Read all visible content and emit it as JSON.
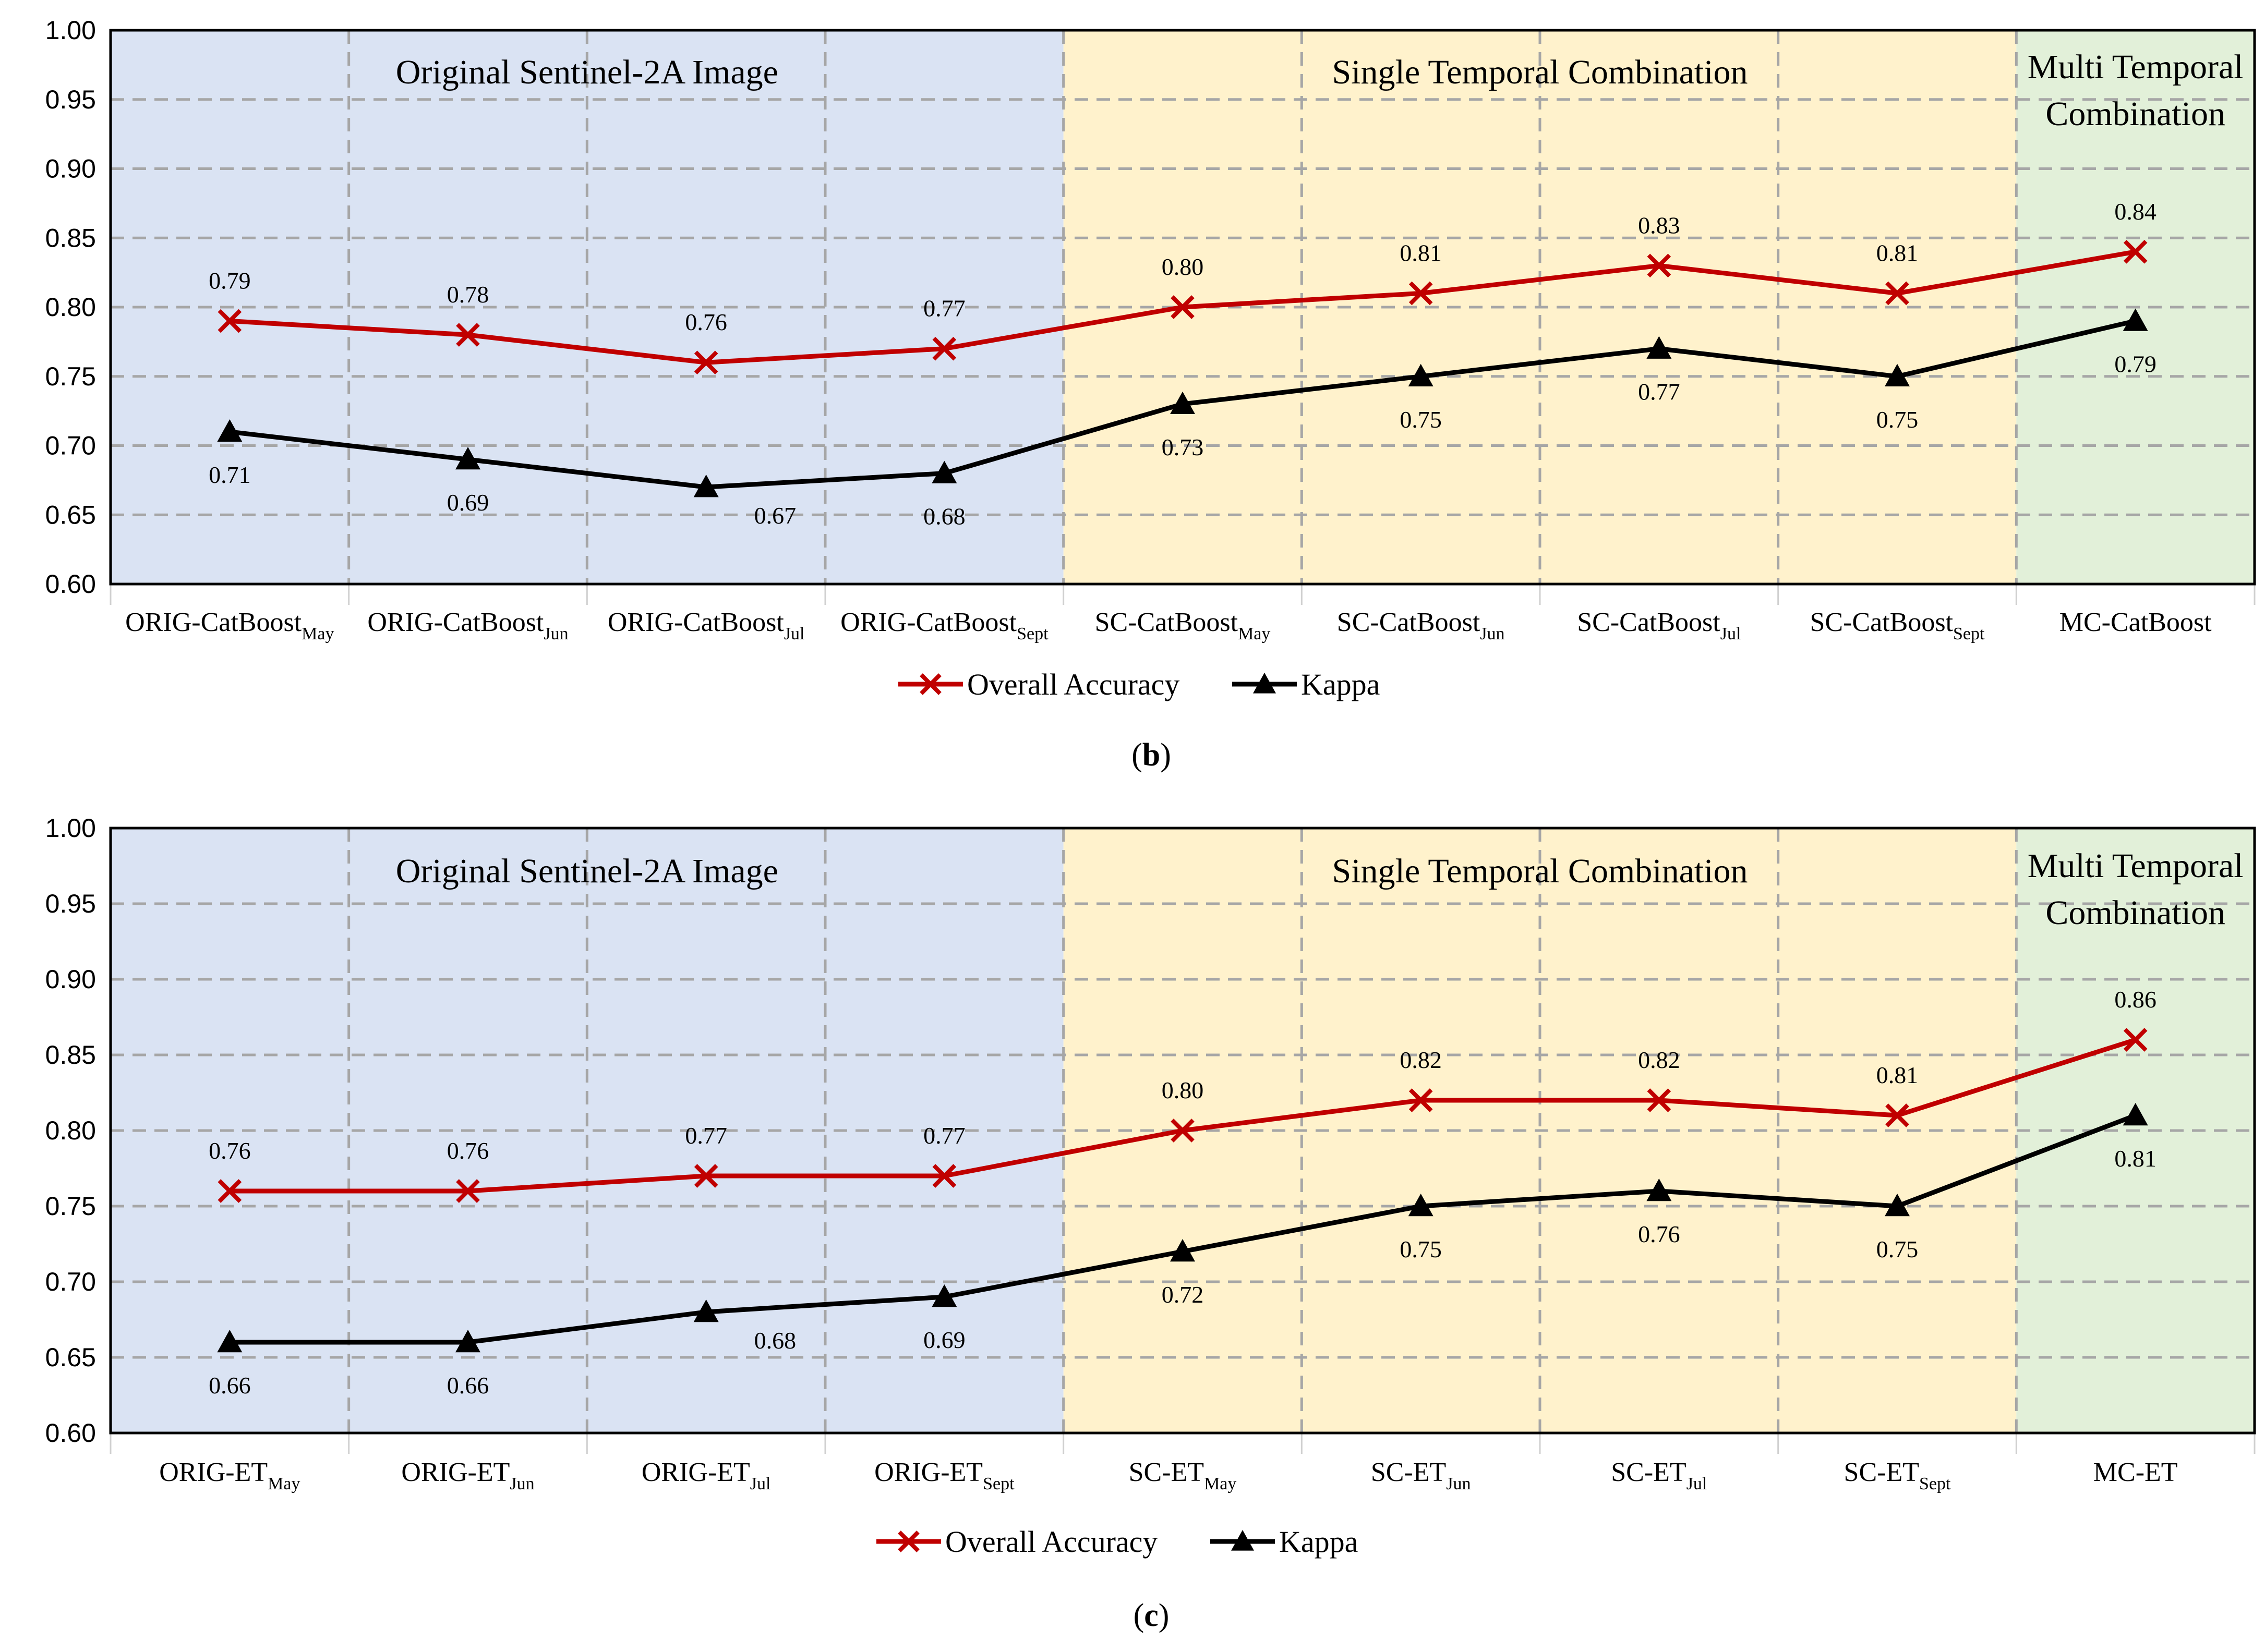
{
  "colors": {
    "oa": "#c00000",
    "kappa": "#000000",
    "band_original": "#dae3f3",
    "band_single": "#fff2cc",
    "band_multi": "#e2f0d9",
    "grid": "#a6a6a6"
  },
  "chart_data": [
    {
      "type": "line",
      "panel_caption": "b",
      "ylim": [
        0.6,
        1.0
      ],
      "yticks": [
        "0.60",
        "0.65",
        "0.70",
        "0.75",
        "0.80",
        "0.85",
        "0.90",
        "0.95",
        "1.00"
      ],
      "categories": [
        {
          "main": "ORIG-CatBoost",
          "sub": "May"
        },
        {
          "main": "ORIG-CatBoost",
          "sub": "Jun"
        },
        {
          "main": "ORIG-CatBoost",
          "sub": "Jul"
        },
        {
          "main": "ORIG-CatBoost",
          "sub": "Sept"
        },
        {
          "main": "SC-CatBoost",
          "sub": "May"
        },
        {
          "main": "SC-CatBoost",
          "sub": "Jun"
        },
        {
          "main": "SC-CatBoost",
          "sub": "Jul"
        },
        {
          "main": "SC-CatBoost",
          "sub": "Sept"
        },
        {
          "main": "MC-CatBoost",
          "sub": ""
        }
      ],
      "bands": [
        {
          "label_lines": [
            "Original Sentinel-2A Image"
          ],
          "start": 0,
          "end": 4,
          "color_key": "band_original"
        },
        {
          "label_lines": [
            "Single Temporal Combination"
          ],
          "start": 4,
          "end": 8,
          "color_key": "band_single"
        },
        {
          "label_lines": [
            "Multi Temporal",
            "Combination"
          ],
          "start": 8,
          "end": 9,
          "color_key": "band_multi"
        }
      ],
      "series": [
        {
          "name": "Overall Accuracy",
          "marker": "x",
          "color_key": "oa",
          "values": [
            0.79,
            0.78,
            0.76,
            0.77,
            0.8,
            0.81,
            0.83,
            0.81,
            0.84
          ],
          "labels": [
            "0.79",
            "0.78",
            "0.76",
            "0.77",
            "0.80",
            "0.81",
            "0.83",
            "0.81",
            "0.84"
          ],
          "label_pos": [
            "above",
            "above",
            "above",
            "above",
            "above",
            "above",
            "above",
            "above",
            "above"
          ]
        },
        {
          "name": "Kappa",
          "marker": "triangle",
          "color_key": "kappa",
          "values": [
            0.71,
            0.69,
            0.67,
            0.68,
            0.73,
            0.75,
            0.77,
            0.75,
            0.79
          ],
          "labels": [
            "0.71",
            "0.69",
            "0.67",
            "0.68",
            "0.73",
            "0.75",
            "0.77",
            "0.75",
            "0.79"
          ],
          "label_pos": [
            "below",
            "below",
            "right",
            "below",
            "below",
            "below",
            "below",
            "below",
            "below"
          ]
        }
      ]
    },
    {
      "type": "line",
      "panel_caption": "c",
      "ylim": [
        0.6,
        1.0
      ],
      "yticks": [
        "0.60",
        "0.65",
        "0.70",
        "0.75",
        "0.80",
        "0.85",
        "0.90",
        "0.95",
        "1.00"
      ],
      "categories": [
        {
          "main": "ORIG-ET",
          "sub": "May"
        },
        {
          "main": "ORIG-ET",
          "sub": "Jun"
        },
        {
          "main": "ORIG-ET",
          "sub": "Jul"
        },
        {
          "main": "ORIG-ET",
          "sub": "Sept"
        },
        {
          "main": "SC-ET",
          "sub": "May"
        },
        {
          "main": "SC-ET",
          "sub": "Jun"
        },
        {
          "main": "SC-ET",
          "sub": "Jul"
        },
        {
          "main": "SC-ET",
          "sub": "Sept"
        },
        {
          "main": "MC-ET",
          "sub": ""
        }
      ],
      "bands": [
        {
          "label_lines": [
            "Original Sentinel-2A Image"
          ],
          "start": 0,
          "end": 4,
          "color_key": "band_original"
        },
        {
          "label_lines": [
            "Single Temporal Combination"
          ],
          "start": 4,
          "end": 8,
          "color_key": "band_single"
        },
        {
          "label_lines": [
            "Multi Temporal",
            "Combination"
          ],
          "start": 8,
          "end": 9,
          "color_key": "band_multi"
        }
      ],
      "series": [
        {
          "name": "Overall Accuracy",
          "marker": "x",
          "color_key": "oa",
          "values": [
            0.76,
            0.76,
            0.77,
            0.77,
            0.8,
            0.82,
            0.82,
            0.81,
            0.86
          ],
          "labels": [
            "0.76",
            "0.76",
            "0.77",
            "0.77",
            "0.80",
            "0.82",
            "0.82",
            "0.81",
            "0.86"
          ],
          "label_pos": [
            "above",
            "above",
            "above",
            "above",
            "above",
            "above",
            "above",
            "above",
            "above"
          ]
        },
        {
          "name": "Kappa",
          "marker": "triangle",
          "color_key": "kappa",
          "values": [
            0.66,
            0.66,
            0.68,
            0.69,
            0.72,
            0.75,
            0.76,
            0.75,
            0.81
          ],
          "labels": [
            "0.66",
            "0.66",
            "0.68",
            "0.69",
            "0.72",
            "0.75",
            "0.76",
            "0.75",
            "0.81"
          ],
          "label_pos": [
            "below",
            "below",
            "right",
            "below",
            "below",
            "below",
            "below",
            "below",
            "below"
          ]
        }
      ]
    }
  ]
}
